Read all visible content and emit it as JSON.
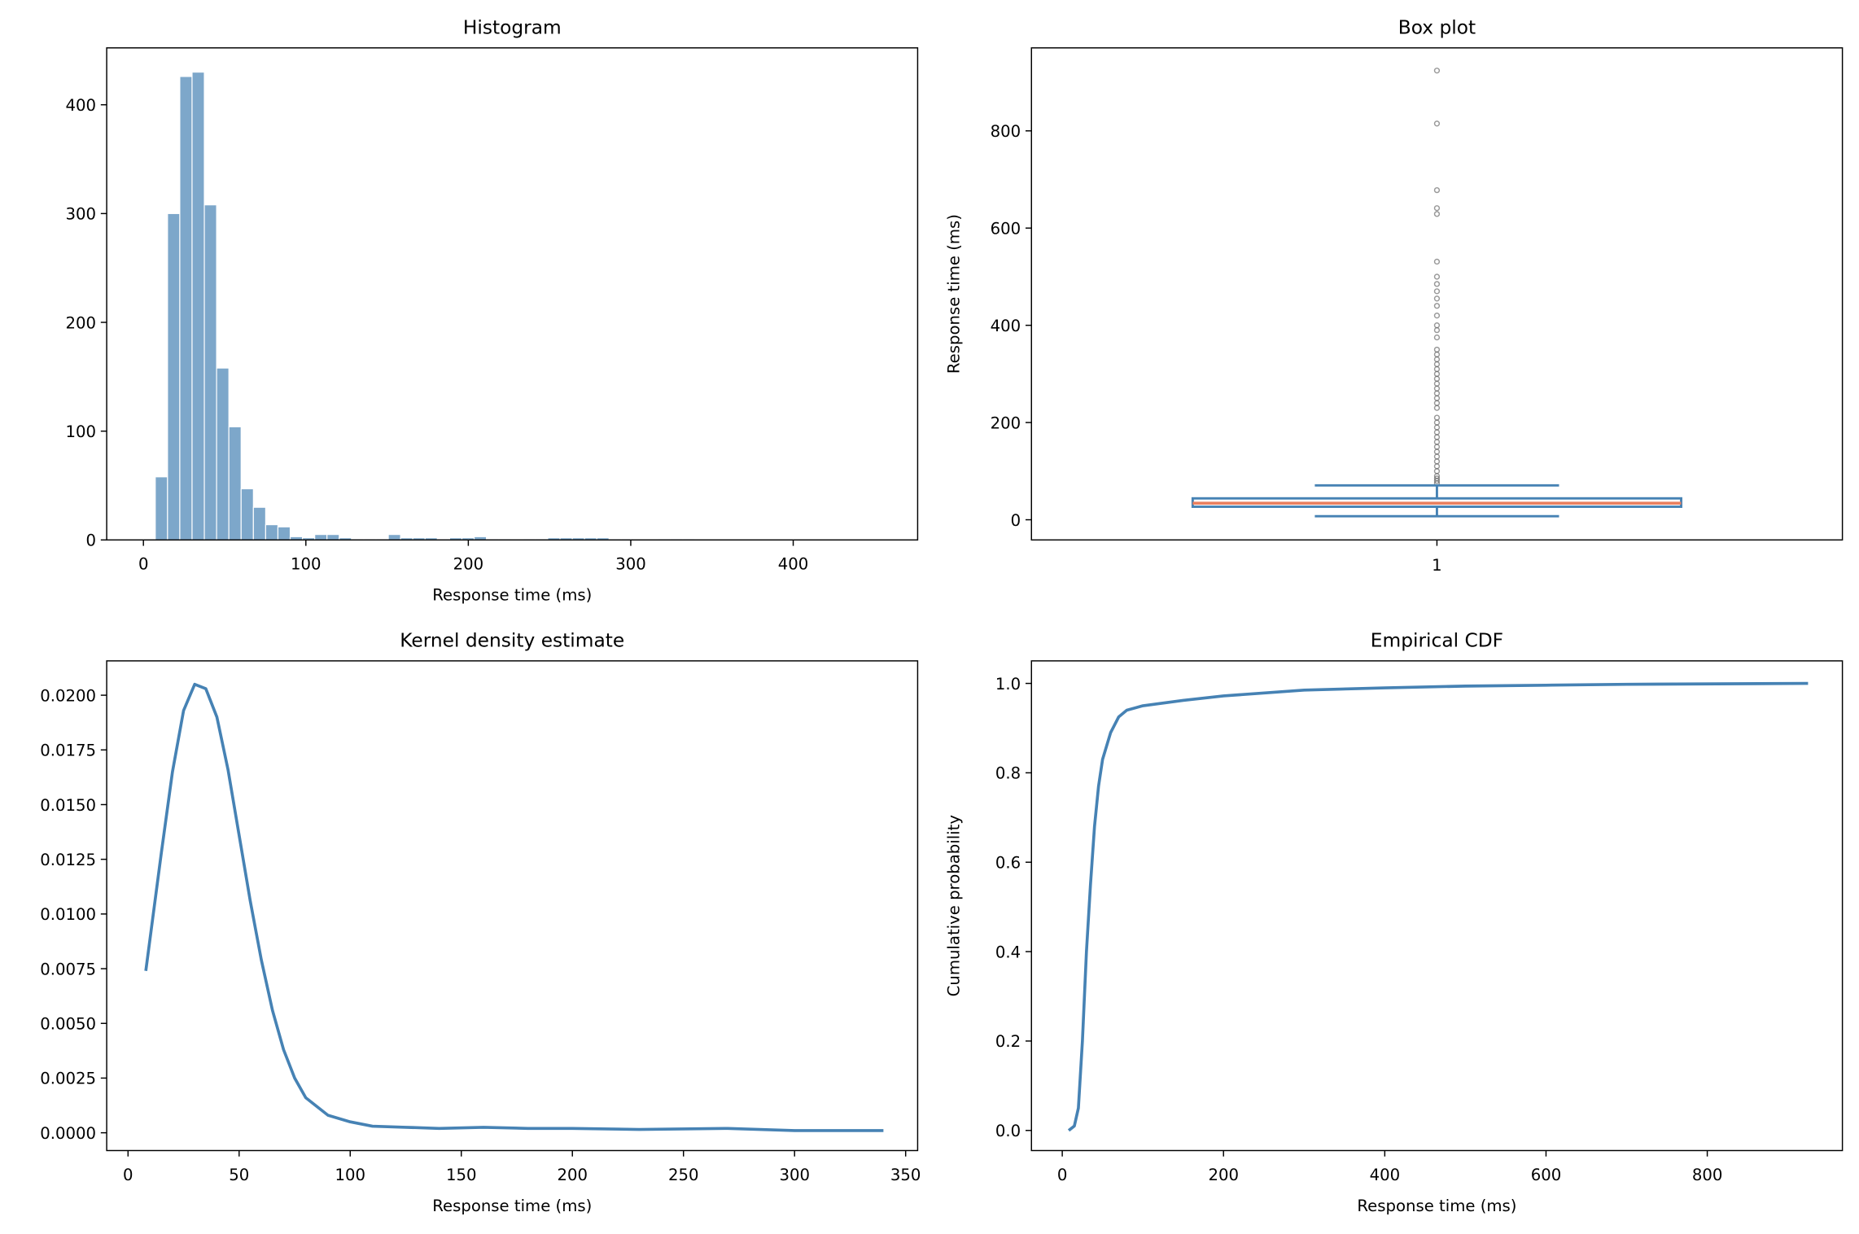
{
  "chart_data": [
    {
      "type": "histogram",
      "title": "Histogram",
      "xlabel": "Response time (ms)",
      "color": "#4682b4",
      "opacity": 0.7,
      "bins": [
        7.3,
        14.85,
        22.4,
        29.95,
        37.5,
        45.05,
        52.6,
        60.15,
        67.7,
        75.25,
        82.8,
        90.35,
        97.9,
        105.45,
        113,
        120.55,
        128.1,
        135.65,
        143.2,
        150.75,
        158.3,
        165.85,
        173.4,
        180.95,
        188.5,
        196.05,
        203.6,
        211.15,
        218.7,
        226.25,
        233.8,
        241.35,
        248.9,
        256.45,
        264,
        271.55,
        279.1,
        286.65,
        294.2,
        301.75,
        309.3,
        316.85,
        324.4,
        331.95,
        339.5
      ],
      "values": [
        58,
        300,
        426,
        430,
        308,
        158,
        104,
        47,
        30,
        14,
        12,
        3,
        2,
        5,
        5,
        2,
        1,
        1,
        1,
        5,
        2,
        2,
        2,
        1,
        2,
        2,
        3,
        1,
        1,
        0,
        1,
        1,
        2,
        2,
        2,
        2,
        2,
        1,
        1,
        0,
        0,
        1,
        1,
        1
      ],
      "xlim": [
        -22.6,
        476.6
      ],
      "ylim": [
        0,
        452.3
      ],
      "xticks": [
        0,
        100,
        200,
        300,
        400
      ],
      "yticks": [
        0,
        100,
        200,
        300,
        400
      ]
    },
    {
      "type": "box",
      "title": "Box plot",
      "ylabel": "Response time (ms)",
      "color": "#4682b4",
      "median_color": "#e9805f",
      "flier_color": "#555555",
      "categories": [
        "1"
      ],
      "stats": {
        "whislo": 7.3,
        "q1": 26.8,
        "med": 34,
        "q3": 44,
        "whishi": 70.7,
        "fliers": [
          924,
          815,
          678,
          641,
          629,
          531,
          500,
          485,
          470,
          455,
          440,
          420,
          400,
          390,
          375,
          350,
          340,
          330,
          320,
          310,
          300,
          290,
          280,
          270,
          260,
          250,
          240,
          230,
          210,
          200,
          190,
          180,
          170,
          160,
          150,
          140,
          130,
          120,
          110,
          100,
          90,
          85,
          80,
          75
        ]
      },
      "ylim": [
        -41.5,
        970.7
      ],
      "yticks": [
        0,
        200,
        400,
        600,
        800
      ]
    },
    {
      "type": "line",
      "title": "Kernel density estimate",
      "xlabel": "Response time (ms)",
      "color": "#4682b4",
      "x": [
        8,
        15,
        20,
        25,
        30,
        35,
        40,
        45,
        50,
        55,
        60,
        65,
        70,
        75,
        80,
        90,
        100,
        110,
        125,
        140,
        160,
        180,
        200,
        230,
        270,
        300,
        340
      ],
      "values": [
        0.0074,
        0.0128,
        0.0165,
        0.0193,
        0.0205,
        0.0203,
        0.019,
        0.0166,
        0.0136,
        0.0106,
        0.0079,
        0.0056,
        0.0038,
        0.0025,
        0.0016,
        0.0008,
        0.0005,
        0.0003,
        0.00025,
        0.0002,
        0.00025,
        0.0002,
        0.0002,
        0.00015,
        0.0002,
        0.0001,
        0.0001
      ],
      "xlim": [
        -9.6,
        355.4
      ],
      "ylim": [
        -0.000813,
        0.02157
      ],
      "xticks": [
        0,
        50,
        100,
        150,
        200,
        250,
        300,
        350
      ],
      "yticks": [
        {
          "value": 0,
          "label": "0.0000"
        },
        {
          "value": 0.0025,
          "label": "0.0025"
        },
        {
          "value": 0.005,
          "label": "0.0050"
        },
        {
          "value": 0.0075,
          "label": "0.0075"
        },
        {
          "value": 0.01,
          "label": "0.0100"
        },
        {
          "value": 0.0125,
          "label": "0.0125"
        },
        {
          "value": 0.015,
          "label": "0.0150"
        },
        {
          "value": 0.0175,
          "label": "0.0175"
        },
        {
          "value": 0.02,
          "label": "0.0200"
        }
      ]
    },
    {
      "type": "line",
      "title": "Empirical CDF",
      "xlabel": "Response time (ms)",
      "ylabel": "Cumulative probability",
      "color": "#4682b4",
      "x": [
        8,
        15,
        20,
        25,
        30,
        35,
        40,
        45,
        50,
        60,
        70,
        80,
        100,
        150,
        200,
        300,
        400,
        500,
        600,
        700,
        925
      ],
      "values": [
        0,
        0.01,
        0.05,
        0.2,
        0.4,
        0.55,
        0.68,
        0.77,
        0.83,
        0.89,
        0.925,
        0.94,
        0.95,
        0.962,
        0.972,
        0.985,
        0.99,
        0.994,
        0.996,
        0.998,
        1.0
      ],
      "xlim": [
        -38.2,
        967.6
      ],
      "ylim": [
        -0.045,
        1.0504
      ],
      "xticks": [
        0,
        200,
        400,
        600,
        800
      ],
      "yticks": [
        {
          "value": 0,
          "label": "0.0"
        },
        {
          "value": 0.2,
          "label": "0.2"
        },
        {
          "value": 0.4,
          "label": "0.4"
        },
        {
          "value": 0.6,
          "label": "0.6"
        },
        {
          "value": 0.8,
          "label": "0.8"
        },
        {
          "value": 1,
          "label": "1.0"
        }
      ]
    }
  ]
}
